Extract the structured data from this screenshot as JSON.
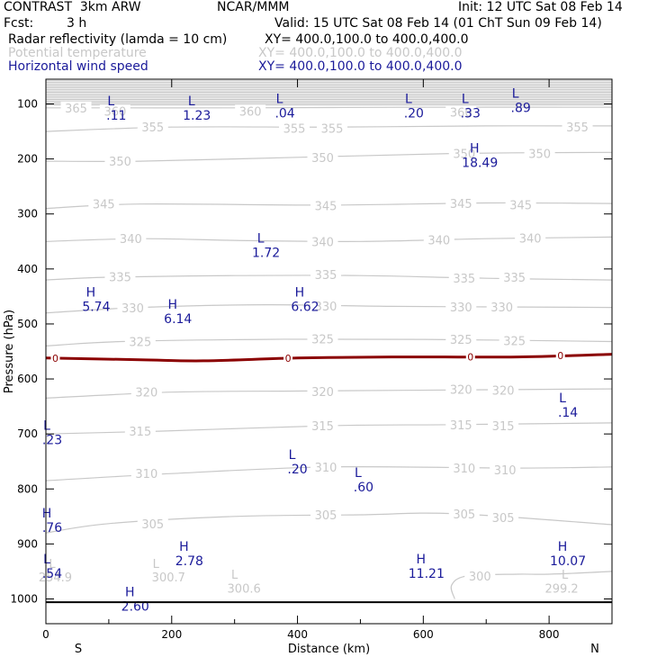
{
  "header": {
    "model": "CONTRAST  3km ARW",
    "org": "NCAR/MMM",
    "init": "Init: 12 UTC Sat 08 Feb 14",
    "fcst_label": "Fcst:",
    "fcst_value": "3 h",
    "valid": "Valid: 15 UTC Sat 08 Feb 14 (01 ChT Sun 09 Feb 14)",
    "fields": [
      {
        "name": "Radar reflectivity (lamda = 10 cm)",
        "xy": "XY= 400.0,100.0 to 400.0,400.0",
        "color": "#000000"
      },
      {
        "name": "Potential temperature",
        "xy": "XY= 400.0,100.0 to 400.0,400.0",
        "color": "#c8c8c8"
      },
      {
        "name": "Horizontal wind speed",
        "xy": "XY= 400.0,100.0 to 400.0,400.0",
        "color": "#1a1a9a"
      }
    ]
  },
  "chart_data": {
    "type": "line",
    "xlabel": "Distance (km)",
    "ylabel": "Pressure (hPa)",
    "xlim": [
      0,
      900
    ],
    "ylim": [
      1045,
      55
    ],
    "y_scale": "linear, inverted",
    "x_ticks": [
      0,
      200,
      400,
      600,
      800
    ],
    "x_tick_labels": [
      "0",
      "200",
      "400",
      "600",
      "800"
    ],
    "y_ticks": [
      100,
      200,
      300,
      400,
      500,
      600,
      700,
      800,
      900,
      1000
    ],
    "y_tick_labels": [
      "100",
      "200",
      "300",
      "400",
      "500",
      "600",
      "700",
      "800",
      "900",
      "1000"
    ],
    "x_end_labels": {
      "left": "S",
      "right": "N"
    },
    "colors": {
      "theta": "#c8c8c8",
      "freezing": "#8b0000",
      "wind": "#1a1a9a",
      "axis": "#000000"
    },
    "theta_contours": [
      {
        "value": 365,
        "points": [
          [
            0,
            107
          ],
          [
            300,
            107
          ],
          [
            600,
            106
          ],
          [
            900,
            106
          ]
        ],
        "labels": [
          [
            48,
            107,
            "365"
          ],
          [
            110,
            113,
            "360"
          ],
          [
            325,
            113,
            "360"
          ],
          [
            660,
            115,
            "360"
          ]
        ]
      },
      {
        "value": 355,
        "points": [
          [
            0,
            150
          ],
          [
            200,
            142
          ],
          [
            450,
            142
          ],
          [
            700,
            140
          ],
          [
            900,
            140
          ]
        ],
        "labels": [
          [
            170,
            142,
            "355"
          ],
          [
            395,
            144,
            "355"
          ],
          [
            455,
            144,
            "355"
          ],
          [
            845,
            142,
            "355"
          ]
        ]
      },
      {
        "value": 350,
        "points": [
          [
            0,
            204
          ],
          [
            150,
            204
          ],
          [
            400,
            197
          ],
          [
            650,
            190
          ],
          [
            900,
            188
          ]
        ],
        "labels": [
          [
            118,
            204,
            "350"
          ],
          [
            440,
            197,
            "350"
          ],
          [
            665,
            190,
            "350"
          ],
          [
            785,
            190,
            "350"
          ]
        ]
      },
      {
        "value": 345,
        "points": [
          [
            0,
            290
          ],
          [
            150,
            282
          ],
          [
            450,
            284
          ],
          [
            700,
            280
          ],
          [
            900,
            281
          ]
        ],
        "labels": [
          [
            92,
            282,
            "345"
          ],
          [
            445,
            285,
            "345"
          ],
          [
            660,
            281,
            "345"
          ],
          [
            755,
            283,
            "345"
          ]
        ]
      },
      {
        "value": 340,
        "points": [
          [
            0,
            350
          ],
          [
            150,
            345
          ],
          [
            300,
            348
          ],
          [
            500,
            350
          ],
          [
            700,
            345
          ],
          [
            900,
            342
          ]
        ],
        "labels": [
          [
            135,
            345,
            "340"
          ],
          [
            440,
            350,
            "340"
          ],
          [
            625,
            347,
            "340"
          ],
          [
            770,
            344,
            "340"
          ]
        ]
      },
      {
        "value": 335,
        "points": [
          [
            0,
            420
          ],
          [
            100,
            415
          ],
          [
            300,
            412
          ],
          [
            500,
            412
          ],
          [
            700,
            417
          ],
          [
            900,
            420
          ]
        ],
        "labels": [
          [
            118,
            414,
            "335"
          ],
          [
            445,
            410,
            "335"
          ],
          [
            665,
            417,
            "335"
          ],
          [
            745,
            415,
            "335"
          ]
        ]
      },
      {
        "value": 330,
        "points": [
          [
            0,
            480
          ],
          [
            150,
            470
          ],
          [
            350,
            465
          ],
          [
            550,
            468
          ],
          [
            900,
            470
          ]
        ],
        "labels": [
          [
            138,
            471,
            "330"
          ],
          [
            445,
            467,
            "330"
          ],
          [
            660,
            469,
            "330"
          ],
          [
            725,
            469,
            "330"
          ]
        ]
      },
      {
        "value": 325,
        "points": [
          [
            0,
            540
          ],
          [
            120,
            532
          ],
          [
            350,
            528
          ],
          [
            600,
            528
          ],
          [
            900,
            532
          ]
        ],
        "labels": [
          [
            150,
            532,
            "325"
          ],
          [
            440,
            527,
            "325"
          ],
          [
            660,
            528,
            "325"
          ],
          [
            745,
            530,
            "325"
          ]
        ]
      },
      {
        "value": 320,
        "points": [
          [
            0,
            635
          ],
          [
            200,
            624
          ],
          [
            400,
            622
          ],
          [
            650,
            620
          ],
          [
            900,
            618
          ]
        ],
        "labels": [
          [
            160,
            624,
            "320"
          ],
          [
            440,
            623,
            "320"
          ],
          [
            660,
            619,
            "320"
          ],
          [
            727,
            620,
            "320"
          ]
        ]
      },
      {
        "value": 315,
        "points": [
          [
            0,
            700
          ],
          [
            180,
            695
          ],
          [
            450,
            685
          ],
          [
            650,
            683
          ],
          [
            900,
            680
          ]
        ],
        "labels": [
          [
            150,
            695,
            "315"
          ],
          [
            440,
            685,
            "315"
          ],
          [
            660,
            683,
            "315"
          ],
          [
            727,
            685,
            "315"
          ]
        ]
      },
      {
        "value": 310,
        "points": [
          [
            0,
            785
          ],
          [
            200,
            772
          ],
          [
            450,
            760
          ],
          [
            750,
            762
          ],
          [
            900,
            760
          ]
        ],
        "labels": [
          [
            160,
            772,
            "310"
          ],
          [
            445,
            760,
            "310"
          ],
          [
            665,
            762,
            "310"
          ],
          [
            730,
            765,
            "310"
          ]
        ]
      },
      {
        "value": 305,
        "points": [
          [
            0,
            880
          ],
          [
            100,
            863
          ],
          [
            300,
            850
          ],
          [
            500,
            847
          ],
          [
            650,
            845
          ],
          [
            900,
            865
          ]
        ],
        "labels": [
          [
            170,
            863,
            "305"
          ],
          [
            445,
            847,
            "305"
          ],
          [
            665,
            845,
            "305"
          ],
          [
            727,
            852,
            "305"
          ]
        ]
      },
      {
        "value": 300,
        "points": [
          [
            650,
            1000
          ],
          [
            645,
            975
          ],
          [
            670,
            958
          ],
          [
            750,
            955
          ],
          [
            800,
            955
          ],
          [
            900,
            950
          ]
        ],
        "labels": [
          [
            690,
            958,
            "300"
          ]
        ]
      }
    ],
    "theta_extrema": [
      {
        "text": "L",
        "x": 10,
        "y": 935
      },
      {
        "text": "254.9",
        "x": 15,
        "y": 960
      },
      {
        "text": "L",
        "x": 175,
        "y": 935
      },
      {
        "text": "300.7",
        "x": 195,
        "y": 960
      },
      {
        "text": "L",
        "x": 300,
        "y": 955
      },
      {
        "text": "300.6",
        "x": 315,
        "y": 980
      },
      {
        "text": "L",
        "x": 825,
        "y": 955
      },
      {
        "text": "299.2",
        "x": 820,
        "y": 980
      }
    ],
    "freezing_level": {
      "label": "0",
      "points": [
        [
          0,
          562
        ],
        [
          150,
          565
        ],
        [
          250,
          567
        ],
        [
          400,
          562
        ],
        [
          550,
          560
        ],
        [
          750,
          560
        ],
        [
          900,
          555
        ]
      ],
      "label_x": [
        15,
        385,
        675,
        818
      ]
    },
    "wind_extrema": [
      {
        "type": "L",
        "value": ".11",
        "x": 112,
        "y": 112
      },
      {
        "type": "L",
        "value": "1.23",
        "x": 240,
        "y": 112
      },
      {
        "type": "L",
        "value": ".04",
        "x": 380,
        "y": 108
      },
      {
        "type": "L",
        "value": ".20",
        "x": 585,
        "y": 108
      },
      {
        "type": "L",
        "value": ".33",
        "x": 675,
        "y": 108
      },
      {
        "type": "L",
        "value": ".89",
        "x": 755,
        "y": 98
      },
      {
        "type": "H",
        "value": "18.49",
        "x": 690,
        "y": 198
      },
      {
        "type": "L",
        "value": "1.72",
        "x": 350,
        "y": 362
      },
      {
        "type": "H",
        "value": "5.74",
        "x": 80,
        "y": 460
      },
      {
        "type": "H",
        "value": "6.14",
        "x": 210,
        "y": 482
      },
      {
        "type": "H",
        "value": "6.62",
        "x": 412,
        "y": 460
      },
      {
        "type": "L",
        "value": ".14",
        "x": 830,
        "y": 652
      },
      {
        "type": "L",
        "value": ".23",
        "x": 10,
        "y": 702
      },
      {
        "type": "L",
        "value": ".20",
        "x": 400,
        "y": 755
      },
      {
        "type": "L",
        "value": ".60",
        "x": 505,
        "y": 788
      },
      {
        "type": "H",
        "value": ".76",
        "x": 10,
        "y": 862
      },
      {
        "type": "H",
        "value": "2.78",
        "x": 228,
        "y": 922
      },
      {
        "type": "L",
        "value": ".54",
        "x": 10,
        "y": 945
      },
      {
        "type": "H",
        "value": "11.21",
        "x": 605,
        "y": 945
      },
      {
        "type": "H",
        "value": "10.07",
        "x": 830,
        "y": 922
      },
      {
        "type": "H",
        "value": "2.60",
        "x": 142,
        "y": 1005
      }
    ],
    "surface_line": {
      "pressure": 1006
    },
    "grid": false
  }
}
